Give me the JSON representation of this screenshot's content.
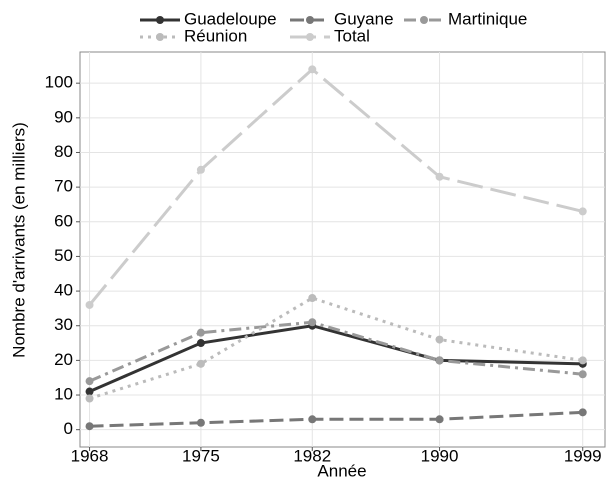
{
  "chart_data": {
    "type": "line",
    "x": [
      1968,
      1975,
      1982,
      1990,
      1999
    ],
    "xlabel": "Année",
    "ylabel": "Nombre d'arrivants (en milliers)",
    "xlim": [
      1967.4,
      2000.4
    ],
    "xticks": [
      1968,
      1975,
      1982,
      1990,
      1999
    ],
    "ylim": [
      -5,
      109
    ],
    "yticks": [
      0,
      10,
      20,
      30,
      40,
      50,
      60,
      70,
      80,
      90,
      100
    ],
    "grid": true,
    "legend": "top",
    "series": [
      {
        "name": "Guadeloupe",
        "color": "#333333",
        "linestyle": "solid",
        "values": [
          11,
          25,
          30,
          20,
          19
        ]
      },
      {
        "name": "Guyane",
        "color": "#777777",
        "linestyle": "dashed",
        "values": [
          1,
          2,
          3,
          3,
          5
        ]
      },
      {
        "name": "Martinique",
        "color": "#999999",
        "linestyle": "dashdot",
        "values": [
          14,
          28,
          31,
          20,
          16
        ]
      },
      {
        "name": "Réunion",
        "color": "#bbbbbb",
        "linestyle": "dotted",
        "values": [
          9,
          19,
          38,
          26,
          20
        ]
      },
      {
        "name": "Total",
        "color": "#cccccc",
        "linestyle": "longdash",
        "values": [
          36,
          75,
          104,
          73,
          63
        ]
      }
    ]
  }
}
